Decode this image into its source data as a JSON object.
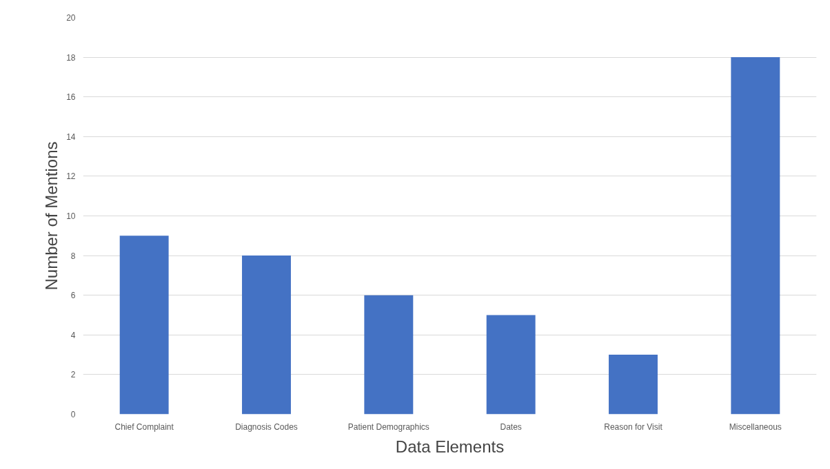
{
  "chart_data": {
    "type": "bar",
    "xlabel": "Data Elements",
    "ylabel": "Number of Mentions",
    "categories": [
      "Chief Complaint",
      "Diagnosis Codes",
      "Patient Demographics",
      "Dates",
      "Reason for Visit",
      "Miscellaneous"
    ],
    "values": [
      9,
      8,
      6,
      5,
      3,
      18
    ],
    "color": "#4472c4",
    "ylim": [
      0,
      20
    ],
    "yticks": [
      0,
      2,
      4,
      6,
      8,
      10,
      12,
      14,
      16,
      18,
      20
    ],
    "grid": "y"
  }
}
